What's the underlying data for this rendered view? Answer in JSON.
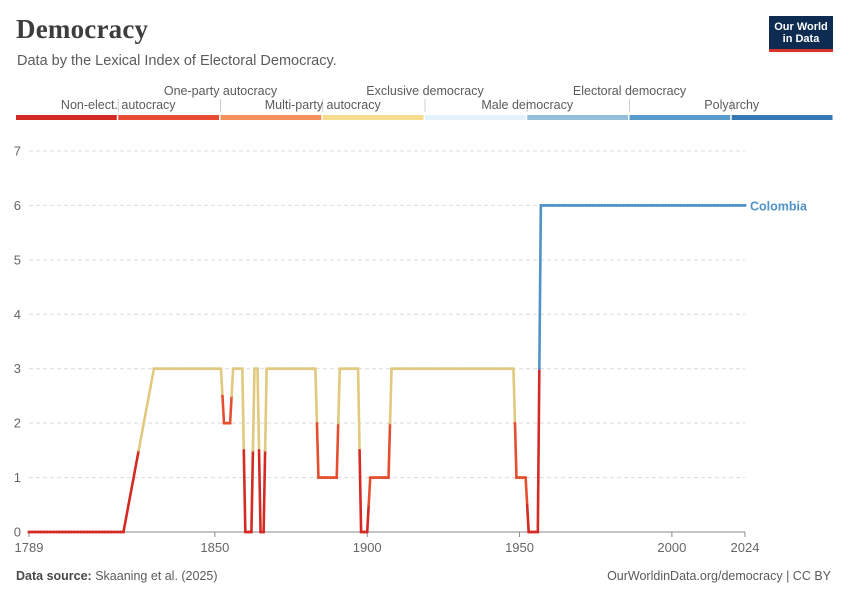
{
  "header": {
    "title": "Democracy",
    "subtitle": "Data by the Lexical Index of Electoral Democracy.",
    "logo_line1": "Our World",
    "logo_line2": "in Data"
  },
  "footer": {
    "source_label": "Data source:",
    "source_text": "Skaaning et al. (2025)",
    "right_text": "OurWorldinData.org/democracy | CC BY"
  },
  "colors": {
    "levels": [
      "#d42a24",
      "#e84c34",
      "#f5905a",
      "#f6dc8c",
      "#e3f1fa",
      "#93bfdb",
      "#5a9bcd",
      "#3378b3"
    ],
    "series": {
      "red": "#d42a24",
      "orange_red": "#e4502f",
      "tan": "#e1c97f",
      "blue": "#4f93c9"
    }
  },
  "chart_data": {
    "type": "line",
    "title": "Democracy",
    "legend": {
      "placement": "top",
      "categories": [
        "Non-elect. autocracy",
        "One-party autocracy",
        "Multi-party autocracy",
        "Exclusive democracy",
        "Male democracy",
        "Electoral democracy",
        "Polyarchy",
        ""
      ]
    },
    "x_ticks": [
      1789,
      1850,
      1900,
      1950,
      2000,
      2024
    ],
    "y_ticks": [
      0,
      1,
      2,
      3,
      4,
      5,
      6,
      7
    ],
    "xlim": [
      1789,
      2024
    ],
    "ylim": [
      0,
      7
    ],
    "grid": true,
    "series": [
      {
        "name": "Colombia",
        "label": "Colombia",
        "points": [
          [
            1789,
            0
          ],
          [
            1820,
            0
          ],
          [
            1830,
            3
          ],
          [
            1852,
            3
          ],
          [
            1853,
            2
          ],
          [
            1855,
            2
          ],
          [
            1856,
            3
          ],
          [
            1859,
            3
          ],
          [
            1860,
            0
          ],
          [
            1862,
            0
          ],
          [
            1863,
            3
          ],
          [
            1864,
            3
          ],
          [
            1865,
            0
          ],
          [
            1866,
            0
          ],
          [
            1867,
            3
          ],
          [
            1883,
            3
          ],
          [
            1884,
            1
          ],
          [
            1890,
            1
          ],
          [
            1891,
            3
          ],
          [
            1897,
            3
          ],
          [
            1898,
            0
          ],
          [
            1900,
            0
          ],
          [
            1901,
            1
          ],
          [
            1907,
            1
          ],
          [
            1908,
            3
          ],
          [
            1948,
            3
          ],
          [
            1949,
            1
          ],
          [
            1952,
            1
          ],
          [
            1953,
            0
          ],
          [
            1956,
            0
          ],
          [
            1957,
            6
          ],
          [
            2024,
            6
          ]
        ]
      }
    ]
  }
}
